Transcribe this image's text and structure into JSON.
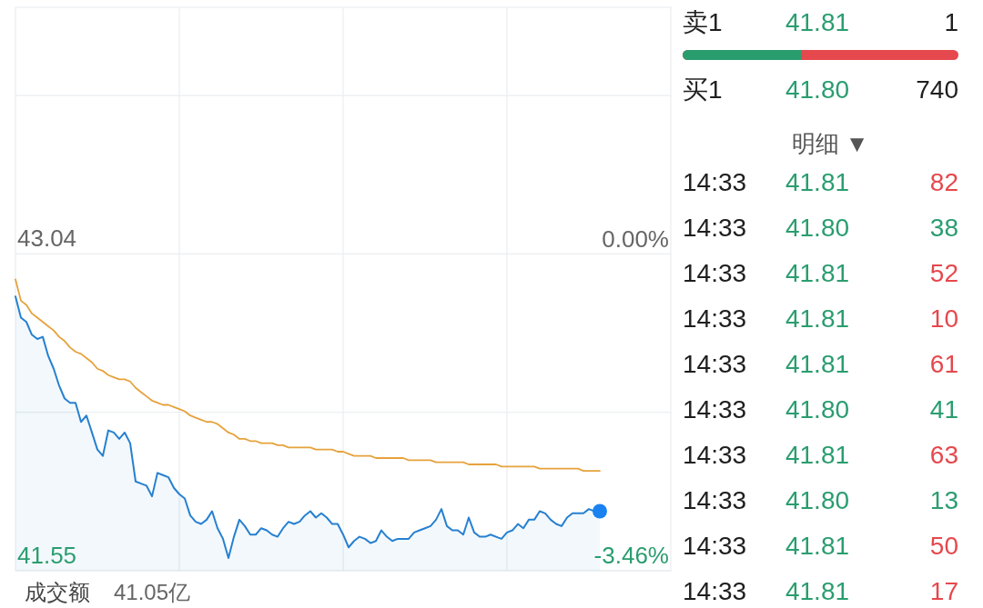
{
  "chart_data": [
    {
      "type": "line",
      "categories": [
        null,
        null,
        null,
        null,
        null,
        null,
        null,
        null,
        null,
        null,
        null,
        null,
        null,
        null,
        null,
        null,
        null,
        null,
        null,
        null,
        null,
        null,
        null,
        null,
        null,
        null,
        null,
        null,
        null,
        null,
        null,
        null,
        null,
        null,
        null,
        null,
        null,
        null,
        null,
        null,
        null,
        null,
        null,
        null,
        null,
        null,
        null,
        null,
        null,
        null,
        null,
        null,
        null,
        null,
        null,
        null,
        null,
        null,
        null,
        null,
        null,
        null,
        null,
        null,
        null,
        null,
        null,
        null,
        null,
        null,
        null,
        null,
        null,
        null,
        null,
        null,
        null,
        null,
        null,
        null,
        null,
        null,
        null,
        null,
        null,
        null,
        null,
        null,
        null,
        null,
        null,
        null,
        null,
        null,
        null,
        null,
        null,
        null,
        null,
        null,
        null,
        null,
        null,
        null,
        null,
        null,
        null,
        null,
        null,
        null,
        null,
        null,
        null,
        null,
        null,
        null,
        null,
        null,
        null,
        null,
        null
      ],
      "series": [
        {
          "type": "area",
          "color": "#2680d0",
          "values": [
            42.84,
            42.74,
            42.72,
            42.66,
            42.64,
            42.65,
            42.56,
            42.5,
            42.42,
            42.36,
            42.34,
            42.34,
            42.25,
            42.28,
            42.2,
            42.12,
            42.09,
            42.21,
            42.2,
            42.17,
            42.2,
            42.15,
            41.97,
            41.96,
            41.95,
            41.9,
            42.01,
            42.0,
            41.99,
            41.94,
            41.91,
            41.89,
            41.81,
            41.78,
            41.77,
            41.79,
            41.83,
            41.75,
            41.7,
            41.61,
            41.71,
            41.79,
            41.76,
            41.72,
            41.72,
            41.75,
            41.74,
            41.72,
            41.71,
            41.75,
            41.78,
            41.77,
            41.78,
            41.81,
            41.83,
            41.8,
            41.82,
            41.8,
            41.77,
            41.77,
            41.72,
            41.66,
            41.69,
            41.71,
            41.7,
            41.68,
            41.69,
            41.74,
            41.71,
            41.69,
            41.7,
            41.7,
            41.7,
            41.73,
            41.74,
            41.75,
            41.76,
            41.79,
            41.84,
            41.76,
            41.74,
            41.74,
            41.72,
            41.8,
            41.73,
            41.71,
            41.71,
            41.72,
            41.71,
            41.7,
            41.73,
            41.74,
            41.77,
            41.75,
            41.79,
            41.79,
            41.83,
            41.82,
            41.79,
            41.77,
            41.76,
            41.8,
            41.82,
            41.82,
            41.82,
            41.84,
            41.83,
            41.83,
            null,
            null,
            null,
            null,
            null,
            null,
            null,
            null,
            null,
            null,
            null,
            null,
            null
          ]
        },
        {
          "type": "line",
          "color": "#e6a23c",
          "values": [
            42.92,
            42.82,
            42.8,
            42.76,
            42.74,
            42.72,
            42.7,
            42.68,
            42.65,
            42.63,
            42.6,
            42.58,
            42.57,
            42.55,
            42.53,
            42.5,
            42.49,
            42.47,
            42.46,
            42.45,
            42.45,
            42.44,
            42.41,
            42.39,
            42.37,
            42.35,
            42.34,
            42.33,
            42.33,
            42.32,
            42.31,
            42.3,
            42.28,
            42.27,
            42.26,
            42.25,
            42.25,
            42.24,
            42.22,
            42.2,
            42.19,
            42.17,
            42.17,
            42.16,
            42.16,
            42.15,
            42.15,
            42.15,
            42.14,
            42.14,
            42.13,
            42.13,
            42.13,
            42.13,
            42.13,
            42.12,
            42.12,
            42.12,
            42.12,
            42.11,
            42.11,
            42.1,
            42.09,
            42.09,
            42.09,
            42.09,
            42.08,
            42.08,
            42.08,
            42.08,
            42.08,
            42.08,
            42.07,
            42.07,
            42.07,
            42.07,
            42.07,
            42.06,
            42.06,
            42.06,
            42.06,
            42.06,
            42.06,
            42.05,
            42.05,
            42.05,
            42.05,
            42.05,
            42.05,
            42.04,
            42.04,
            42.04,
            42.04,
            42.04,
            42.04,
            42.04,
            42.03,
            42.03,
            42.03,
            42.03,
            42.03,
            42.03,
            42.03,
            42.03,
            42.02,
            42.02,
            42.02,
            42.02,
            null,
            null,
            null,
            null,
            null,
            null,
            null,
            null,
            null,
            null,
            null,
            null,
            null
          ]
        },
        {
          "type": "scatter",
          "color": "#1a82f0",
          "values": [
            null,
            null,
            null,
            null,
            null,
            null,
            null,
            null,
            null,
            null,
            null,
            null,
            null,
            null,
            null,
            null,
            null,
            null,
            null,
            null,
            null,
            null,
            null,
            null,
            null,
            null,
            null,
            null,
            null,
            null,
            null,
            null,
            null,
            null,
            null,
            null,
            null,
            null,
            null,
            null,
            null,
            null,
            null,
            null,
            null,
            null,
            null,
            null,
            null,
            null,
            null,
            null,
            null,
            null,
            null,
            null,
            null,
            null,
            null,
            null,
            null,
            null,
            null,
            null,
            null,
            null,
            null,
            null,
            null,
            null,
            null,
            null,
            null,
            null,
            null,
            null,
            null,
            null,
            null,
            null,
            null,
            null,
            null,
            null,
            null,
            null,
            null,
            null,
            null,
            null,
            null,
            null,
            null,
            null,
            null,
            null,
            null,
            null,
            null,
            null,
            null,
            null,
            null,
            null,
            null,
            null,
            null,
            41.83,
            null,
            null,
            null,
            null,
            null,
            null,
            null,
            null,
            null,
            null,
            null,
            null,
            null
          ]
        }
      ],
      "ylim": [
        41.55,
        44.2
      ],
      "yticks": [
        41.55,
        {
          "value": 42.295,
          "label": null
        },
        43.04,
        {
          "value": 43.785,
          "label": null
        }
      ],
      "y2lim": [
        -3.46,
        2.7
      ],
      "y2ticks": [
        {
          "value": -3.46,
          "label": "-3.46%"
        },
        {
          "value": 0,
          "label": "0.00%"
        }
      ],
      "grid": true,
      "annotations": [
        "成交额",
        "41.05亿"
      ]
    },
    {
      "type": "other",
      "annotations": [
        "卖1 41.81 1",
        "买1 41.80 740",
        "明细 ▼",
        "14:33 41.81 82",
        "14:33 41.80 38",
        "14:33 41.81 52",
        "14:33 41.81 10",
        "14:33 41.81 61",
        "14:33 41.80 41",
        "14:33 41.81 63",
        "14:33 41.80 13",
        "14:33 41.81 50",
        "14:33 41.81 17"
      ]
    }
  ]
}
